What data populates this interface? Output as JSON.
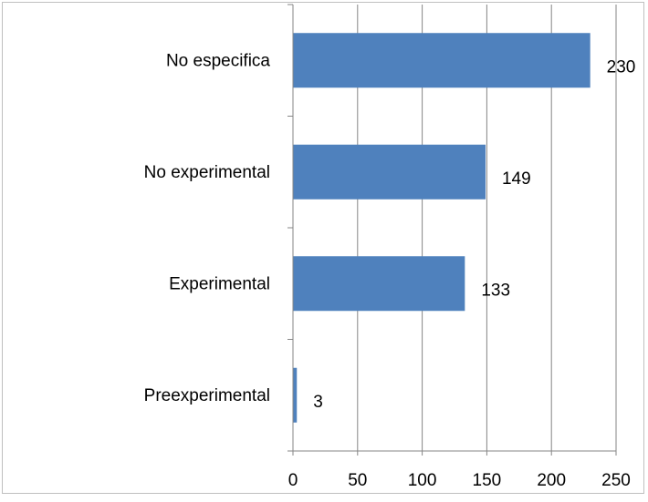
{
  "chart_data": {
    "type": "bar",
    "orientation": "horizontal",
    "title": "",
    "xlabel": "",
    "ylabel": "",
    "categories": [
      "No especifica",
      "No experimental",
      "Experimental",
      "Preexperimental"
    ],
    "values": [
      230,
      149,
      133,
      3
    ],
    "xlim": [
      0,
      250
    ],
    "x_ticks": [
      0,
      50,
      100,
      150,
      200,
      250
    ],
    "grid": "vertical",
    "legend": "none",
    "data_labels": [
      "230",
      "149",
      "133",
      "3"
    ],
    "bar_color": "#4f81bd"
  }
}
